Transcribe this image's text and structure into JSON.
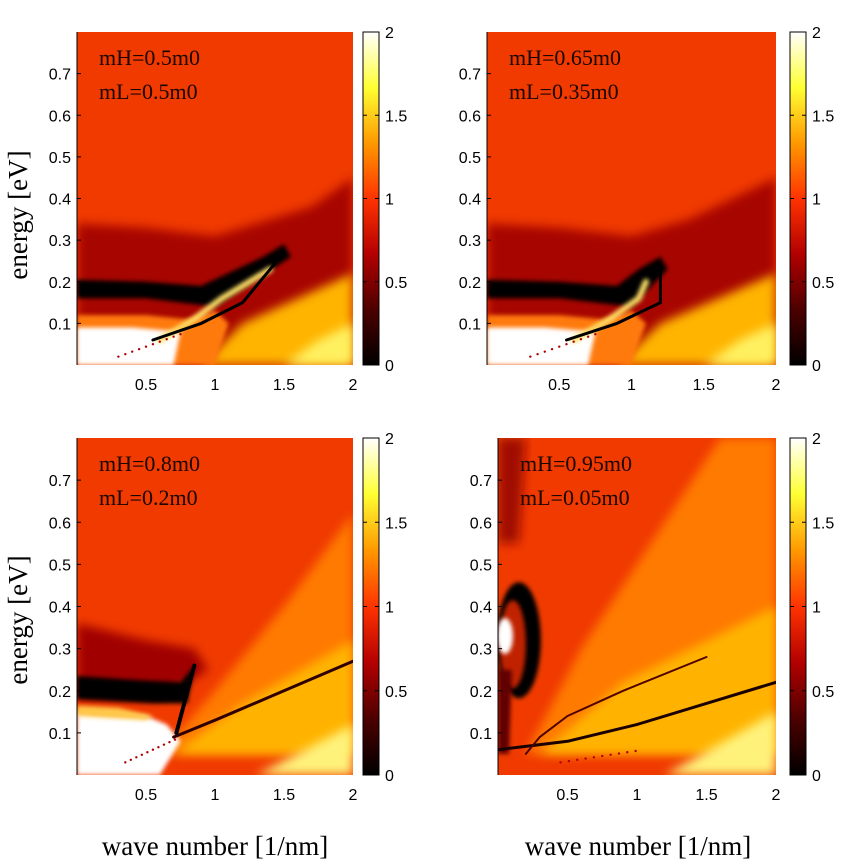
{
  "figure": {
    "xlabel": "wave number [1/nm]",
    "ylabel": "energy [eV]"
  },
  "colormap": {
    "name": "hot",
    "stops": [
      "#000000",
      "#4d0000",
      "#b30000",
      "#ff3300",
      "#ff9900",
      "#ffff33",
      "#ffffff"
    ]
  },
  "chart_data": [
    {
      "type": "heatmap",
      "panel": "top-left",
      "annotation": [
        "mH=0.5m0",
        "mL=0.5m0"
      ],
      "xlabel": "",
      "ylabel": "energy [eV]",
      "xlim": [
        0,
        2
      ],
      "ylim": [
        0,
        0.8
      ],
      "xticks": [
        "0.5",
        "1",
        "1.5",
        "2"
      ],
      "yticks": [
        "0.1",
        "0.2",
        "0.3",
        "0.4",
        "0.5",
        "0.6",
        "0.7"
      ],
      "colorbar": {
        "range": [
          0,
          2
        ],
        "ticks": [
          "0",
          "0.5",
          "1",
          "1.5",
          "2"
        ]
      },
      "params": {
        "mH": 0.5,
        "mL": 0.5
      },
      "features": {
        "dark_band_energy": 0.17,
        "dark_arm_end": [
          1.5,
          0.28
        ],
        "bright_region": "lower-right, values ~1.8-2"
      }
    },
    {
      "type": "heatmap",
      "panel": "top-right",
      "annotation": [
        "mH=0.65m0",
        "mL=0.35m0"
      ],
      "xlabel": "",
      "ylabel": "",
      "xlim": [
        0,
        2
      ],
      "ylim": [
        0,
        0.8
      ],
      "xticks": [
        "0.5",
        "1",
        "1.5",
        "2"
      ],
      "yticks": [
        "0.1",
        "0.2",
        "0.3",
        "0.4",
        "0.5",
        "0.6",
        "0.7"
      ],
      "colorbar": {
        "range": [
          0,
          2
        ],
        "ticks": [
          "0",
          "0.5",
          "1",
          "1.5",
          "2"
        ]
      },
      "params": {
        "mH": 0.65,
        "mL": 0.35
      },
      "features": {
        "dark_band_energy": 0.17,
        "dark_arm_end": [
          1.2,
          0.25
        ],
        "bright_region": "lower-right, values ~1.8-2"
      }
    },
    {
      "type": "heatmap",
      "panel": "bottom-left",
      "annotation": [
        "mH=0.8m0",
        "mL=0.2m0"
      ],
      "xlabel": "wave number [1/nm]",
      "ylabel": "energy [eV]",
      "xlim": [
        0,
        2
      ],
      "ylim": [
        0,
        0.8
      ],
      "xticks": [
        "0.5",
        "1",
        "1.5",
        "2"
      ],
      "yticks": [
        "0.1",
        "0.2",
        "0.3",
        "0.4",
        "0.5",
        "0.6",
        "0.7"
      ],
      "colorbar": {
        "range": [
          0,
          2
        ],
        "ticks": [
          "0",
          "0.5",
          "1",
          "1.5",
          "2"
        ]
      },
      "params": {
        "mH": 0.8,
        "mL": 0.2
      },
      "features": {
        "dark_band_energy": 0.2,
        "dark_arm_end": [
          0.85,
          0.27
        ],
        "bright_region": "fan of elevated values toward high wave number"
      }
    },
    {
      "type": "heatmap",
      "panel": "bottom-right",
      "annotation": [
        "mH=0.95m0",
        "mL=0.05m0"
      ],
      "xlabel": "wave number [1/nm]",
      "ylabel": "",
      "xlim": [
        0,
        2
      ],
      "ylim": [
        0,
        0.8
      ],
      "xticks": [
        "0.5",
        "1",
        "1.5",
        "2"
      ],
      "yticks": [
        "0.1",
        "0.2",
        "0.3",
        "0.4",
        "0.5",
        "0.6",
        "0.7"
      ],
      "colorbar": {
        "range": [
          0,
          2
        ],
        "ticks": [
          "0",
          "0.5",
          "1",
          "1.5",
          "2"
        ]
      },
      "params": {
        "mH": 0.95,
        "mL": 0.05
      },
      "features": {
        "dark_ring_center": [
          0.15,
          0.32
        ],
        "dark_curve_energy": 0.06,
        "bright_region": "fan of elevated values toward high wave number"
      }
    }
  ]
}
